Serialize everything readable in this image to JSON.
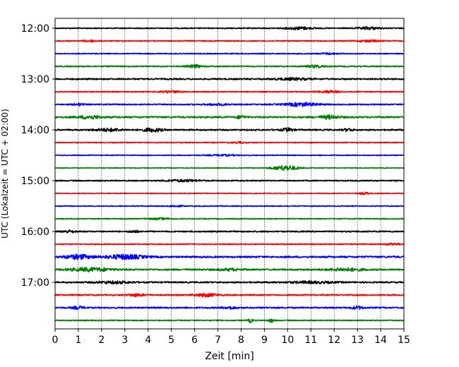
{
  "chart_data": {
    "type": "line",
    "title": "",
    "xlabel": "Zeit  [min]",
    "ylabel": "UTC (Lokalzeit = UTC + 02:00)",
    "xlim": [
      0,
      15
    ],
    "xticks": [
      "0",
      "1",
      "2",
      "3",
      "4",
      "5",
      "6",
      "7",
      "8",
      "9",
      "10",
      "11",
      "12",
      "13",
      "14",
      "15"
    ],
    "yticks": [
      {
        "label": "12:00",
        "row": 0
      },
      {
        "label": "13:00",
        "row": 4
      },
      {
        "label": "14:00",
        "row": 8
      },
      {
        "label": "15:00",
        "row": 12
      },
      {
        "label": "16:00",
        "row": 16
      },
      {
        "label": "17:00",
        "row": 20
      }
    ],
    "grid_x": true,
    "row_minutes": 15,
    "colors": [
      "#000000",
      "#ff0000",
      "#0000ff",
      "#008000"
    ],
    "rows": [
      {
        "start": "12:00",
        "color": "#000000",
        "base": 0.22,
        "bursts": [
          [
            10.5,
            1.2,
            0.55
          ],
          [
            13.5,
            1.0,
            0.5
          ]
        ]
      },
      {
        "start": "12:15",
        "color": "#ff0000",
        "base": 0.22,
        "bursts": [
          [
            1.5,
            0.6,
            0.4
          ],
          [
            13.5,
            1.0,
            0.35
          ]
        ]
      },
      {
        "start": "12:30",
        "color": "#0000ff",
        "base": 0.2,
        "bursts": [
          [
            11.8,
            0.8,
            0.3
          ]
        ]
      },
      {
        "start": "12:45",
        "color": "#008000",
        "base": 0.25,
        "bursts": [
          [
            6.0,
            0.6,
            0.6
          ],
          [
            11.2,
            0.8,
            0.55
          ]
        ]
      },
      {
        "start": "13:00",
        "color": "#000000",
        "base": 0.3,
        "bursts": [
          [
            10.2,
            1.5,
            0.4
          ]
        ]
      },
      {
        "start": "13:15",
        "color": "#ff0000",
        "base": 0.22,
        "bursts": [
          [
            5.0,
            0.8,
            0.45
          ],
          [
            11.8,
            0.8,
            0.5
          ]
        ]
      },
      {
        "start": "13:30",
        "color": "#0000ff",
        "base": 0.25,
        "bursts": [
          [
            1.0,
            0.4,
            0.5
          ],
          [
            10.6,
            1.4,
            0.75
          ],
          [
            7.0,
            1.0,
            0.35
          ]
        ]
      },
      {
        "start": "13:45",
        "color": "#008000",
        "base": 0.35,
        "bursts": [
          [
            1.5,
            0.9,
            0.7
          ],
          [
            8.0,
            0.4,
            0.6
          ],
          [
            11.8,
            0.9,
            0.65
          ]
        ]
      },
      {
        "start": "14:00",
        "color": "#000000",
        "base": 0.3,
        "bursts": [
          [
            2.3,
            1.2,
            0.55
          ],
          [
            4.2,
            0.8,
            0.8
          ],
          [
            10.0,
            0.5,
            0.7
          ],
          [
            12.6,
            0.4,
            0.55
          ]
        ]
      },
      {
        "start": "14:15",
        "color": "#ff0000",
        "base": 0.18,
        "bursts": [
          [
            7.9,
            0.6,
            0.3
          ]
        ]
      },
      {
        "start": "14:30",
        "color": "#0000ff",
        "base": 0.18,
        "bursts": [
          [
            7.2,
            1.2,
            0.3
          ]
        ]
      },
      {
        "start": "14:45",
        "color": "#008000",
        "base": 0.15,
        "bursts": [
          [
            9.9,
            1.1,
            1.1
          ]
        ]
      },
      {
        "start": "15:00",
        "color": "#000000",
        "base": 0.25,
        "bursts": [
          [
            5.5,
            1.5,
            0.4
          ]
        ]
      },
      {
        "start": "15:15",
        "color": "#ff0000",
        "base": 0.15,
        "bursts": [
          [
            13.3,
            0.5,
            0.45
          ]
        ]
      },
      {
        "start": "15:30",
        "color": "#0000ff",
        "base": 0.18,
        "bursts": [
          [
            5.2,
            0.5,
            0.35
          ]
        ]
      },
      {
        "start": "15:45",
        "color": "#008000",
        "base": 0.2,
        "bursts": [
          [
            4.5,
            1.2,
            0.3
          ]
        ]
      },
      {
        "start": "16:00",
        "color": "#000000",
        "base": 0.28,
        "bursts": [
          [
            0.6,
            0.6,
            0.5
          ],
          [
            3.4,
            0.4,
            0.45
          ]
        ]
      },
      {
        "start": "16:15",
        "color": "#ff0000",
        "base": 0.22,
        "bursts": [
          [
            14.5,
            0.6,
            0.4
          ]
        ]
      },
      {
        "start": "16:30",
        "color": "#0000ff",
        "base": 0.35,
        "bursts": [
          [
            1.0,
            1.2,
            0.9
          ],
          [
            3.0,
            1.6,
            0.95
          ]
        ]
      },
      {
        "start": "16:45",
        "color": "#008000",
        "base": 0.35,
        "bursts": [
          [
            1.5,
            1.8,
            0.7
          ],
          [
            12.5,
            1.5,
            0.55
          ],
          [
            7.5,
            1.0,
            0.4
          ]
        ]
      },
      {
        "start": "17:00",
        "color": "#000000",
        "base": 0.3,
        "bursts": [
          [
            2.5,
            1.5,
            0.45
          ],
          [
            11.0,
            2.0,
            0.4
          ]
        ]
      },
      {
        "start": "17:15",
        "color": "#ff0000",
        "base": 0.28,
        "bursts": [
          [
            3.5,
            0.8,
            0.5
          ],
          [
            6.5,
            1.0,
            0.65
          ]
        ]
      },
      {
        "start": "17:30",
        "color": "#0000ff",
        "base": 0.3,
        "bursts": [
          [
            1.0,
            0.5,
            0.55
          ],
          [
            13.0,
            0.5,
            0.6
          ],
          [
            7.5,
            0.6,
            0.5
          ]
        ]
      },
      {
        "start": "17:45",
        "color": "#008000",
        "base": 0.22,
        "bursts": [
          [
            8.4,
            0.2,
            0.8
          ],
          [
            9.3,
            0.2,
            0.85
          ]
        ]
      }
    ]
  }
}
